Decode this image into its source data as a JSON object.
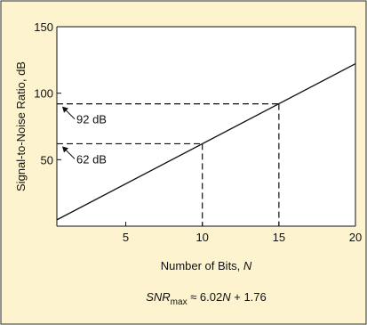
{
  "colors": {
    "panel_background": "#fdf3cf",
    "panel_border": "#2b2b2b",
    "plot_background": "#ffffff",
    "line": "#111111"
  },
  "chart_data": {
    "type": "line",
    "xlabel": "Number of Bits, ",
    "xlabel_var": "N",
    "ylabel": "Signal-to-Noise Ratio, dB",
    "xlim": [
      0.5,
      20
    ],
    "ylim": [
      0,
      150
    ],
    "xticks": [
      5,
      10,
      15,
      20
    ],
    "yticks": [
      50,
      100,
      150
    ],
    "grid": false,
    "legend": "none",
    "series": [
      {
        "x": [
          0.5,
          20
        ],
        "y": [
          4.77,
          122.16
        ],
        "slope": 6.02,
        "intercept": 1.76
      }
    ],
    "annotations": [
      {
        "label": "92 dB",
        "x": 15,
        "y": 92
      },
      {
        "label": "62 dB",
        "x": 10,
        "y": 62
      }
    ],
    "formula": {
      "snr": "SNR",
      "sub": "max",
      "mid": " ≈ 6.02",
      "n": "N",
      "rest": " + 1.76"
    }
  }
}
